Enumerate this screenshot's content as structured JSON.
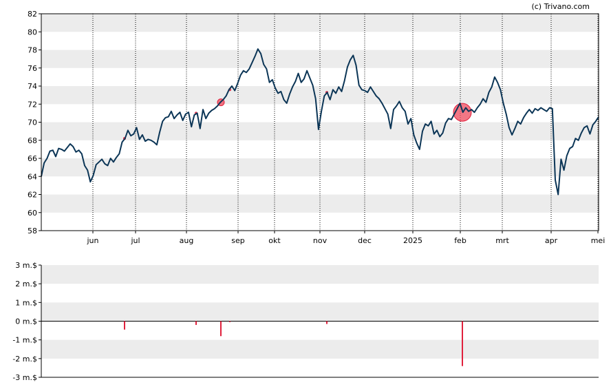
{
  "credit": "(c) Trivano.com",
  "colors": {
    "band": "#ececec",
    "price_line": "#0b3556",
    "transaction": "#e0203c",
    "marker": "#ef4a5c",
    "axis": "#000000",
    "vgrid": "#000000"
  },
  "chart_data": [
    {
      "type": "line",
      "title": "",
      "xlabel": "",
      "ylabel": "",
      "ylim": [
        58,
        82
      ],
      "y_ticks": [
        "58",
        "60",
        "62",
        "64",
        "66",
        "68",
        "70",
        "72",
        "74",
        "76",
        "78",
        "80",
        "82"
      ],
      "x_ticks": [
        "jun",
        "jul",
        "aug",
        "sep",
        "okt",
        "nov",
        "dec",
        "2025",
        "feb",
        "mrt",
        "apr",
        "mei"
      ],
      "grid": "horizontal bands, dotted vertical month lines",
      "series": [
        {
          "values": [
            64.0,
            65.5,
            66.0,
            66.8,
            66.9,
            66.2,
            67.1,
            67.0,
            66.8,
            67.2,
            67.6,
            67.3,
            66.7,
            66.9,
            66.5,
            65.2,
            64.7,
            63.4,
            64.1,
            65.3,
            65.6,
            65.9,
            65.4,
            65.2,
            66.0,
            65.6,
            66.1,
            66.5,
            67.8,
            68.2,
            69.1,
            68.5,
            68.7,
            69.4,
            68.1,
            68.6,
            67.9,
            68.1,
            68.0,
            67.8,
            67.5,
            68.9,
            70.1,
            70.5,
            70.6,
            71.2,
            70.4,
            70.8,
            71.1,
            70.2,
            70.9,
            71.1,
            69.5,
            70.8,
            71.0,
            69.3,
            71.4,
            70.4,
            71.0,
            71.3,
            71.5,
            71.8,
            72.2,
            72.5,
            72.9,
            73.6,
            74.0,
            73.5,
            74.3,
            75.2,
            75.7,
            75.5,
            75.9,
            76.6,
            77.3,
            78.1,
            77.6,
            76.4,
            75.9,
            74.4,
            74.7,
            73.8,
            73.2,
            73.4,
            72.5,
            72.1,
            73.1,
            73.9,
            74.5,
            75.4,
            74.4,
            74.8,
            75.7,
            74.9,
            74.1,
            72.6,
            69.2,
            71.2,
            72.9,
            73.3,
            72.5,
            73.6,
            73.2,
            73.9,
            73.4,
            74.6,
            76.1,
            76.9,
            77.4,
            76.3,
            74.1,
            73.6,
            73.5,
            73.3,
            73.9,
            73.4,
            72.9,
            72.6,
            72.1,
            71.5,
            70.9,
            69.3,
            71.4,
            71.8,
            72.3,
            71.6,
            71.2,
            69.8,
            70.4,
            68.6,
            67.7,
            67.0,
            69.0,
            69.8,
            69.6,
            70.1,
            68.7,
            69.1,
            68.4,
            68.8,
            69.9,
            70.4,
            70.3,
            70.9,
            71.5,
            72.1,
            71.1,
            71.6,
            71.2,
            71.4,
            71.1,
            71.6,
            72.0,
            72.6,
            72.2,
            73.3,
            73.9,
            75.0,
            74.4,
            73.6,
            72.1,
            70.9,
            69.4,
            68.6,
            69.3,
            70.1,
            69.8,
            70.5,
            71.0,
            71.4,
            71.0,
            71.5,
            71.3,
            71.6,
            71.4,
            71.2,
            71.6,
            71.5,
            63.6,
            62.0,
            65.9,
            64.7,
            66.3,
            67.1,
            67.3,
            68.2,
            68.0,
            68.8,
            69.4,
            69.6,
            68.7,
            69.7,
            70.1,
            70.6
          ]
        },
        {
          "type": "bar",
          "ylim": [
            -3,
            3
          ],
          "y_ticks": [
            "3 m.$",
            "2 m.$",
            "1 m.$",
            "0 m.$",
            "-1 m.$",
            "-2 m.$",
            "-3 m.$"
          ],
          "values": [
            -0.45,
            -0.2,
            -0.8,
            -0.05,
            -0.15,
            -2.4
          ]
        }
      ]
    }
  ]
}
